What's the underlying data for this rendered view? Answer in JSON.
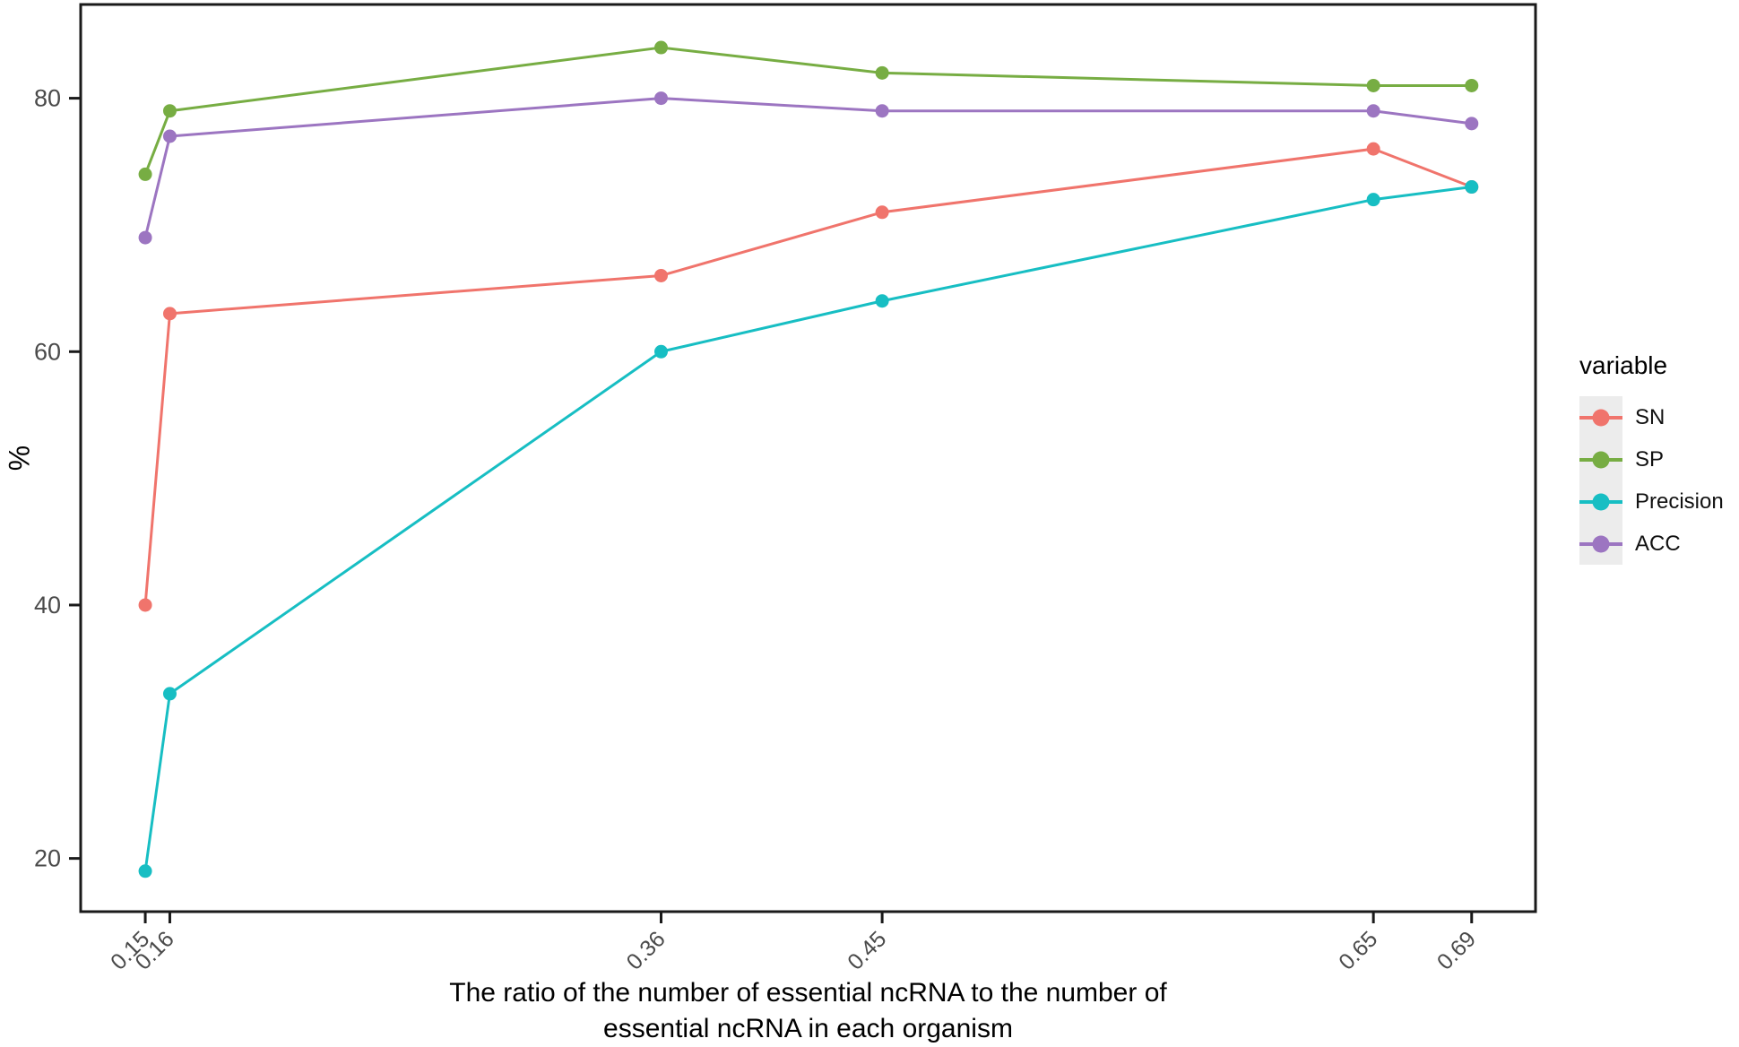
{
  "figure": {
    "background": "#ffffff"
  },
  "chart_data": {
    "type": "line",
    "title": "",
    "ylabel": "%",
    "xlabel_line1": "The ratio of the number of essential ncRNA to the number of",
    "xlabel_line2": "essential ncRNA in each organism",
    "legend_title": "variable",
    "legend_position": "right",
    "grid": false,
    "x": [
      0.15,
      0.16,
      0.36,
      0.45,
      0.65,
      0.69
    ],
    "x_tick_labels": [
      "0.15",
      "0.16",
      "0.36",
      "0.45",
      "0.65",
      "0.69"
    ],
    "y_ticks": [
      20,
      40,
      60,
      80
    ],
    "y_tick_labels": [
      "20",
      "40",
      "60",
      "80"
    ],
    "xlim": [
      0.1237,
      0.716
    ],
    "ylim": [
      15.8,
      87.4
    ],
    "series": [
      {
        "name": "SN",
        "color": "#F0746C",
        "values": [
          40,
          63,
          66,
          71,
          76,
          73
        ]
      },
      {
        "name": "SP",
        "color": "#77AD43",
        "values": [
          74,
          79,
          84,
          82,
          81,
          81
        ]
      },
      {
        "name": "Precision",
        "color": "#17BEC3",
        "values": [
          19,
          33,
          60,
          64,
          72,
          73
        ]
      },
      {
        "name": "ACC",
        "color": "#9C75C1",
        "values": [
          69,
          77,
          80,
          79,
          79,
          78
        ]
      }
    ],
    "tick_label_color": "#4a4a4a",
    "axis_color": "#1a1a1a",
    "legend_key_background": "#ececec"
  }
}
